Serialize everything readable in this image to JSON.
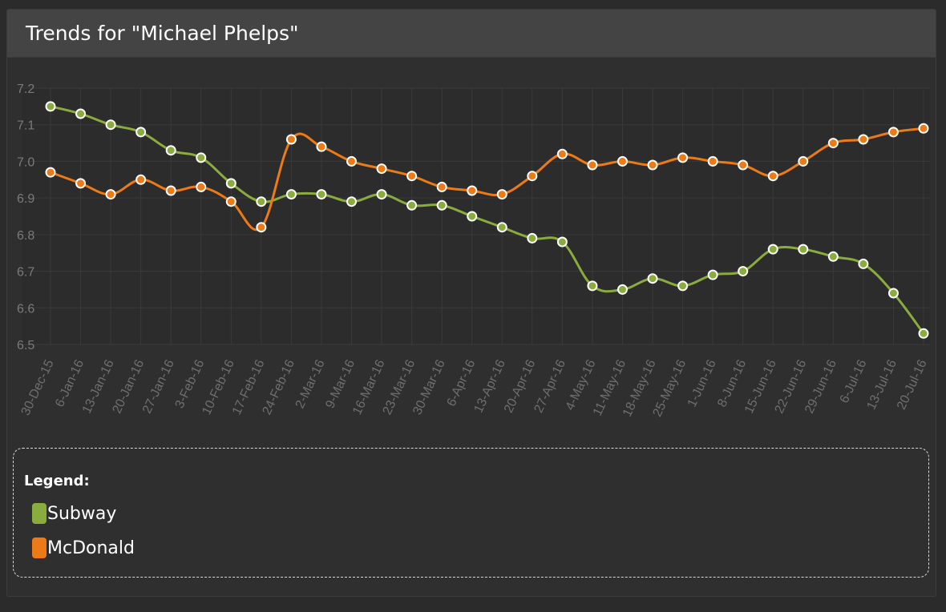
{
  "header": {
    "title": "Trends for \"Michael Phelps\""
  },
  "legend": {
    "title": "Legend:",
    "items": [
      {
        "label": "Subway",
        "color": "#8aac3e"
      },
      {
        "label": "McDonald",
        "color": "#ec7a16"
      }
    ]
  },
  "chart_data": {
    "type": "line",
    "categories": [
      "30-Dec-15",
      "6-Jan-16",
      "13-Jan-16",
      "20-Jan-16",
      "27-Jan-16",
      "3-Feb-16",
      "10-Feb-16",
      "17-Feb-16",
      "24-Feb-16",
      "2-Mar-16",
      "9-Mar-16",
      "16-Mar-16",
      "23-Mar-16",
      "30-Mar-16",
      "6-Apr-16",
      "13-Apr-16",
      "20-Apr-16",
      "27-Apr-16",
      "4-May-16",
      "11-May-16",
      "18-May-16",
      "25-May-16",
      "1-Jun-16",
      "8-Jun-16",
      "15-Jun-16",
      "22-Jun-16",
      "29-Jun-16",
      "6-Jul-16",
      "13-Jul-16",
      "20-Jul-16"
    ],
    "series": [
      {
        "name": "Subway",
        "color": "#8aac3e",
        "values": [
          7.15,
          7.13,
          7.1,
          7.08,
          7.03,
          7.01,
          6.94,
          6.89,
          6.91,
          6.91,
          6.89,
          6.91,
          6.88,
          6.88,
          6.85,
          6.82,
          6.79,
          6.78,
          6.66,
          6.65,
          6.68,
          6.66,
          6.69,
          6.7,
          6.76,
          6.76,
          6.74,
          6.72,
          6.64,
          6.53
        ]
      },
      {
        "name": "McDonald",
        "color": "#ec7a16",
        "values": [
          6.97,
          6.94,
          6.91,
          6.95,
          6.92,
          6.93,
          6.89,
          6.82,
          7.06,
          7.04,
          7.0,
          6.98,
          6.96,
          6.93,
          6.92,
          6.91,
          6.96,
          7.02,
          6.99,
          7.0,
          6.99,
          7.01,
          7.0,
          6.99,
          6.96,
          7.0,
          7.05,
          7.06,
          7.08,
          7.09
        ]
      }
    ],
    "ylim": [
      6.5,
      7.2
    ],
    "yticks": [
      "6.5",
      "6.6",
      "6.7",
      "6.8",
      "6.9",
      "7.0",
      "7.1",
      "7.2"
    ],
    "grid": true,
    "legend_position": "bottom"
  }
}
